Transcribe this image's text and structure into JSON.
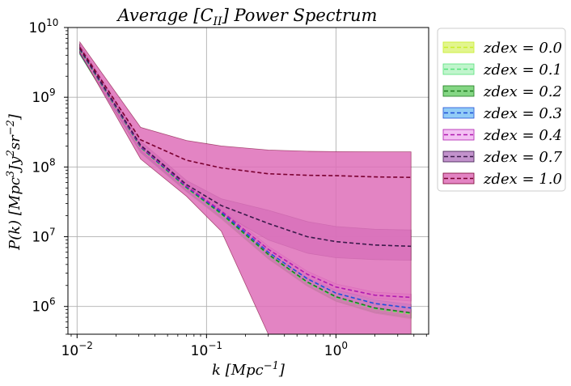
{
  "chart_data": {
    "type": "area",
    "title": "Average [C",
    "title_sub": "II",
    "title_tail": "] Power Spectrum",
    "xlabel": "k [Mpc",
    "xlabel_sup": "−1",
    "xlabel_tail": "]",
    "ylabel": "P(k) [Mpc",
    "ylabel_sup1": "3",
    "ylabel_mid": "Jy",
    "ylabel_sup2": "2",
    "ylabel_mid2": "sr",
    "ylabel_sup3": "−2",
    "ylabel_tail": "]",
    "x_scale": "log",
    "y_scale": "log",
    "xlim": [
      0.0085,
      5.2
    ],
    "ylim": [
      400000,
      10000000000
    ],
    "grid": true,
    "legend_position": "outside-right",
    "x_ticks": [
      {
        "base": "10",
        "exp": "−2",
        "value": 0.01
      },
      {
        "base": "10",
        "exp": "−1",
        "value": 0.1
      },
      {
        "base": "10",
        "exp": "0",
        "value": 1
      }
    ],
    "y_ticks": [
      {
        "base": "10",
        "exp": "6",
        "value": 1000000
      },
      {
        "base": "10",
        "exp": "7",
        "value": 10000000
      },
      {
        "base": "10",
        "exp": "8",
        "value": 100000000
      },
      {
        "base": "10",
        "exp": "9",
        "value": 1000000000
      },
      {
        "base": "10",
        "exp": "10",
        "value": 10000000000
      }
    ],
    "x": [
      0.0105,
      0.031,
      0.07,
      0.13,
      0.3,
      0.6,
      1.0,
      2.0,
      3.8
    ],
    "series": [
      {
        "name": "zdex = 0.0",
        "color": "#c8ee2a",
        "fill": "#ddf37a",
        "mean": [
          4800000000,
          190000000,
          50000000,
          21000000,
          5500000,
          2200000,
          1350000,
          930000,
          780000
        ],
        "lower": [
          4100000000,
          160000000,
          44000000,
          18000000,
          4800000,
          1950000,
          1180000,
          800000,
          660000
        ],
        "upper": [
          5500000000,
          215000000,
          56000000,
          24000000,
          6200000,
          2450000,
          1500000,
          1060000,
          890000
        ]
      },
      {
        "name": "zdex = 0.1",
        "color": "#55e27a",
        "fill": "#b5f3c3",
        "mean": [
          4800000000,
          190000000,
          50000000,
          21000000,
          5500000,
          2200000,
          1350000,
          930000,
          790000
        ],
        "lower": [
          4100000000,
          160000000,
          44000000,
          18000000,
          4800000,
          1950000,
          1180000,
          800000,
          670000
        ],
        "upper": [
          5500000000,
          215000000,
          56000000,
          24000000,
          6200000,
          2450000,
          1500000,
          1060000,
          900000
        ]
      },
      {
        "name": "zdex = 0.2",
        "color": "#1e7a1e",
        "fill": "#6fcf6f",
        "mean": [
          4850000000,
          192000000,
          51000000,
          21500000,
          5600000,
          2250000,
          1380000,
          950000,
          810000
        ],
        "lower": [
          4150000000,
          162000000,
          45000000,
          18500000,
          4900000,
          2000000,
          1200000,
          820000,
          690000
        ],
        "upper": [
          5550000000,
          218000000,
          57000000,
          24500000,
          6300000,
          2500000,
          1550000,
          1080000,
          920000
        ]
      },
      {
        "name": "zdex = 0.3",
        "color": "#1e4fd8",
        "fill": "#7fc3f5",
        "mean": [
          4900000000,
          195000000,
          52000000,
          22500000,
          6000000,
          2500000,
          1550000,
          1100000,
          950000
        ],
        "lower": [
          4200000000,
          165000000,
          46000000,
          19500000,
          5300000,
          2200000,
          1350000,
          960000,
          830000
        ],
        "upper": [
          5600000000,
          222000000,
          58000000,
          25500000,
          6700000,
          2800000,
          1750000,
          1240000,
          1070000
        ]
      },
      {
        "name": "zdex = 0.4",
        "color": "#b01ab0",
        "fill": "#f1b5f1",
        "mean": [
          4950000000,
          198000000,
          53000000,
          23500000,
          6600000,
          2900000,
          1900000,
          1450000,
          1350000
        ],
        "lower": [
          4250000000,
          168000000,
          47000000,
          20500000,
          5900000,
          2600000,
          1700000,
          1300000,
          1200000
        ],
        "upper": [
          5650000000,
          226000000,
          59000000,
          26500000,
          7300000,
          3200000,
          2100000,
          1600000,
          1500000
        ]
      },
      {
        "name": "zdex = 0.7",
        "color": "#3a1a4a",
        "fill": "#b77fc3",
        "mean": [
          5000000000,
          205000000,
          56000000,
          28000000,
          15500000,
          10000000,
          8500000,
          7600000,
          7300000
        ],
        "lower": [
          4300000000,
          172000000,
          48000000,
          22000000,
          9000000,
          5800000,
          5000000,
          4700000,
          4600000
        ],
        "upper": [
          5700000000,
          235000000,
          64000000,
          35000000,
          24000000,
          16500000,
          14000000,
          12800000,
          12500000
        ]
      },
      {
        "name": "zdex = 1.0",
        "color": "#7a0030",
        "fill": "#de6fb8",
        "mean": [
          5200000000,
          245000000,
          125000000,
          97000000,
          80000000,
          76000000,
          75000000,
          72000000,
          71000000
        ],
        "lower": [
          4400000000,
          130000000,
          38000000,
          12000000,
          400000,
          400000,
          400000,
          400000,
          400000
        ],
        "upper": [
          6200000000,
          370000000,
          240000000,
          200000000,
          175000000,
          168000000,
          166000000,
          165000000,
          165000000
        ]
      }
    ]
  }
}
